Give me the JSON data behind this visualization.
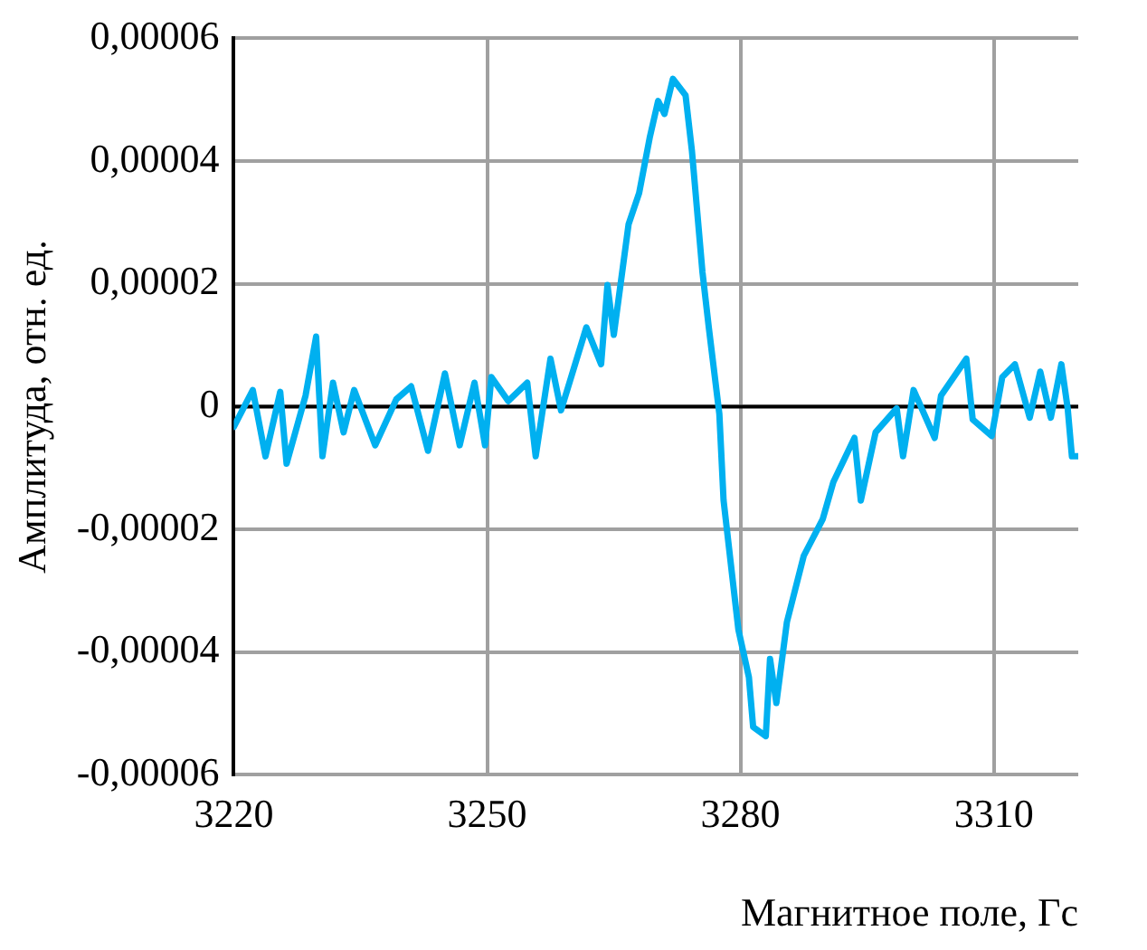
{
  "chart_data": {
    "type": "line",
    "xlabel": "Магнитное поле, Гс",
    "ylabel": "Амплитуда, отн. ед.",
    "x": [
      3220,
      3222.25,
      3223.75,
      3225.5,
      3226.25,
      3228.5,
      3229.75,
      3230.5,
      3231.75,
      3233,
      3234.25,
      3236.75,
      3239.25,
      3241,
      3243,
      3245,
      3246.75,
      3248.5,
      3249.75,
      3250.5,
      3252.5,
      3254.75,
      3255.75,
      3257.5,
      3258.75,
      3261.75,
      3263.5,
      3264.25,
      3265,
      3266.75,
      3268,
      3269.25,
      3270.25,
      3271,
      3272,
      3273.5,
      3274.25,
      3275.5,
      3276.25,
      3277.5,
      3278,
      3279,
      3279.75,
      3281,
      3281.5,
      3283,
      3283.5,
      3284.25,
      3285.5,
      3287.5,
      3289.75,
      3291,
      3293.5,
      3294.25,
      3296,
      3298.5,
      3299.25,
      3300.5,
      3303,
      3303.75,
      3306.75,
      3307.5,
      3309.75,
      3311,
      3312.5,
      3314.25,
      3315.5,
      3316.75,
      3318,
      3318.75,
      3319.25,
      3320
    ],
    "series": [
      {
        "color": "#00b0f0",
        "values": [
          -3.3e-06,
          2.7e-06,
          -8.1e-06,
          2.4e-06,
          -9.3e-06,
          1.8e-06,
          1.14e-05,
          -8.1e-06,
          3.9e-06,
          -4.2e-06,
          2.7e-06,
          -6.3e-06,
          1.2e-06,
          3.3e-06,
          -7.2e-06,
          5.4e-06,
          -6.3e-06,
          3.9e-06,
          -6.3e-06,
          4.8e-06,
          9e-07,
          3.9e-06,
          -8.1e-06,
          7.8e-06,
          -6e-07,
          1.29e-05,
          6.9e-06,
          1.98e-05,
          1.17e-05,
          2.97e-05,
          3.48e-05,
          4.38e-05,
          4.98e-05,
          4.77e-05,
          5.34e-05,
          5.07e-05,
          4.17e-05,
          2.19e-05,
          1.29e-05,
          -1.2e-06,
          -1.53e-05,
          -2.73e-05,
          -3.63e-05,
          -4.41e-05,
          -5.22e-05,
          -5.37e-05,
          -4.11e-05,
          -4.83e-05,
          -3.51e-05,
          -2.43e-05,
          -1.83e-05,
          -1.23e-05,
          -5.1e-06,
          -1.53e-05,
          -4.2e-06,
          -3e-07,
          -8.1e-06,
          2.7e-06,
          -5.1e-06,
          1.8e-06,
          7.8e-06,
          -2.1e-06,
          -4.8e-06,
          4.8e-06,
          6.9e-06,
          -1.8e-06,
          5.7e-06,
          -1.8e-06,
          6.9e-06,
          -3e-07,
          -8.1e-06,
          -8.1e-06
        ]
      }
    ],
    "xlim": [
      3220,
      3320
    ],
    "xticks": [
      3220,
      3250,
      3280,
      3310
    ],
    "ylim": [
      -6e-05,
      6e-05
    ],
    "yticks": [
      {
        "value": -6e-05,
        "label": "-0,00006"
      },
      {
        "value": -4e-05,
        "label": "-0,00004"
      },
      {
        "value": -2e-05,
        "label": "-0,00002"
      },
      0,
      {
        "value": 2e-05,
        "label": "0,00002"
      },
      {
        "value": 4e-05,
        "label": "0,00004"
      },
      {
        "value": 6e-05,
        "label": "0,00006"
      }
    ],
    "ref_lines": [
      {
        "axis": "y",
        "value": 0,
        "color": "#000000"
      }
    ],
    "grid": true,
    "legend": false,
    "marker": "none",
    "line_style": "solid"
  }
}
